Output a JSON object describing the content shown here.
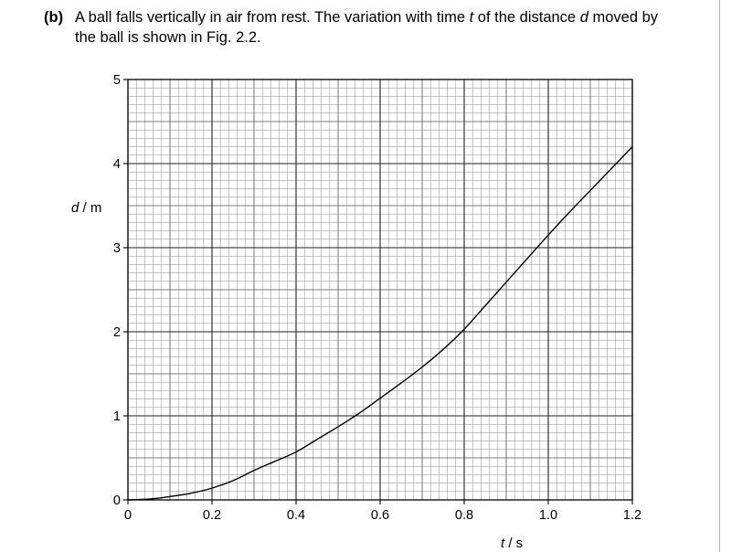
{
  "question": {
    "label": "(b)",
    "text_line1": "A ball falls vertically in air from rest. The variation with time ",
    "text_t": "t",
    "text_line1b": " of the distance ",
    "text_d": "d",
    "text_line1c": " moved by",
    "text_line2": "the ball is shown in Fig. 2.2."
  },
  "chart_data": {
    "type": "line",
    "xlabel_var": "t",
    "xlabel_unit": " / s",
    "ylabel_var": "d",
    "ylabel_unit": " / m",
    "xlim": [
      0,
      1.2
    ],
    "ylim": [
      0,
      5
    ],
    "x_ticks": [
      "0",
      "0.2",
      "0.4",
      "0.6",
      "0.8",
      "1.0",
      "1.2"
    ],
    "y_ticks": [
      "0",
      "1",
      "2",
      "3",
      "4",
      "5"
    ],
    "grid": true,
    "series": [
      {
        "x": [
          0,
          0.05,
          0.1,
          0.15,
          0.2,
          0.25,
          0.3,
          0.35,
          0.4,
          0.45,
          0.5,
          0.55,
          0.6,
          0.65,
          0.7,
          0.75,
          0.8,
          0.85,
          0.9,
          0.95,
          1.0,
          1.05,
          1.1,
          1.15,
          1.2
        ],
        "y": [
          0,
          0.01,
          0.04,
          0.08,
          0.14,
          0.23,
          0.35,
          0.46,
          0.57,
          0.72,
          0.87,
          1.03,
          1.21,
          1.39,
          1.58,
          1.79,
          2.03,
          2.31,
          2.59,
          2.87,
          3.15,
          3.42,
          3.68,
          3.94,
          4.2
        ]
      }
    ]
  }
}
